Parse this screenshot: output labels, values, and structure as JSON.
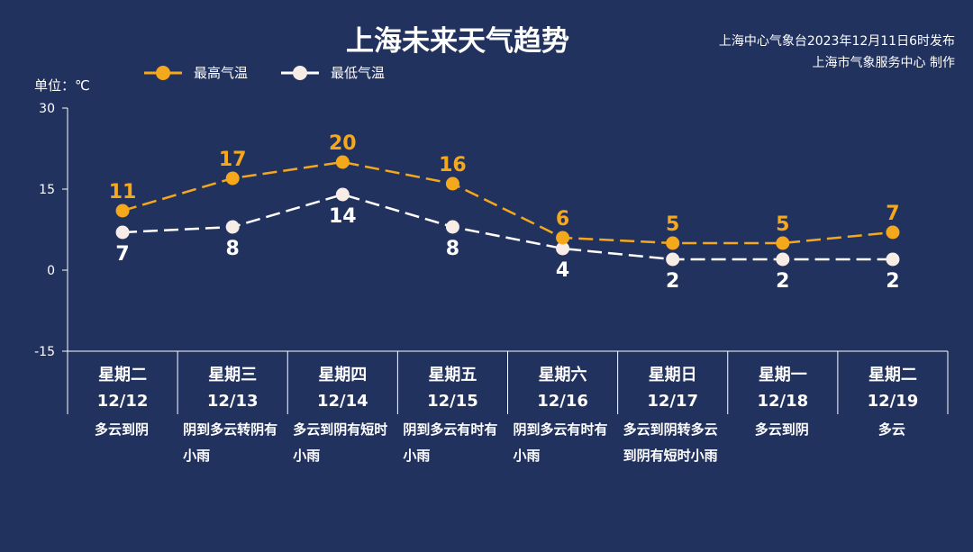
{
  "title": "上海未来天气趋势",
  "issuer": {
    "line1": "上海中心气象台2023年12月11日6时发布",
    "line2": "上海市气象服务中心 制作"
  },
  "unit_label": "单位：℃",
  "colors": {
    "background": "#22325f",
    "high": "#f5a81c",
    "low": "#ffffff",
    "low_marker": "#f7ece6"
  },
  "chart_data": {
    "type": "line",
    "title": "上海未来天气趋势",
    "ylabel": "单位：℃",
    "ylim": [
      -15,
      30
    ],
    "yticks": [
      30,
      15,
      0,
      -15
    ],
    "legend_position": "top-left",
    "categories": [
      "12/12",
      "12/13",
      "12/14",
      "12/15",
      "12/16",
      "12/17",
      "12/18",
      "12/19"
    ],
    "weekdays": [
      "星期二",
      "星期三",
      "星期四",
      "星期五",
      "星期六",
      "星期日",
      "星期一",
      "星期二"
    ],
    "weather": [
      "多云到阴",
      "阴到多云转阴有小雨",
      "多云到阴有短时小雨",
      "阴到多云有时有小雨",
      "阴到多云有时有小雨",
      "多云到阴转多云到阴有短时小雨",
      "多云到阴",
      "多云"
    ],
    "series": [
      {
        "name": "最高气温",
        "values": [
          11,
          17,
          20,
          16,
          6,
          5,
          5,
          7
        ]
      },
      {
        "name": "最低气温",
        "values": [
          7,
          8,
          14,
          8,
          4,
          2,
          2,
          2
        ]
      }
    ]
  }
}
